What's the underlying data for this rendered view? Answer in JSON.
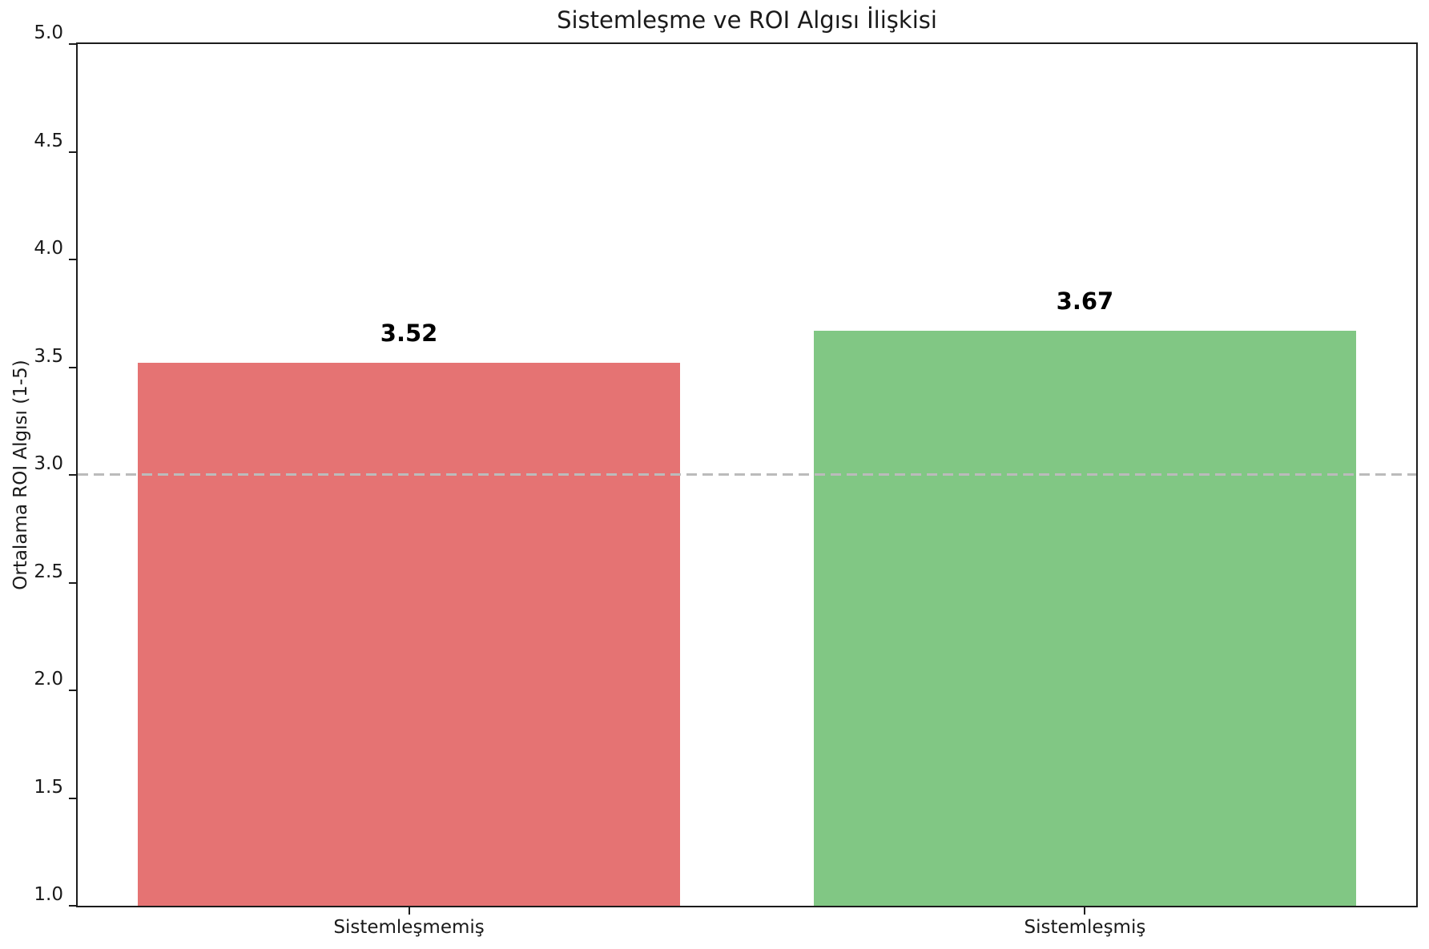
{
  "chart_data": {
    "type": "bar",
    "title": "Sistemleşme ve ROI Algısı İlişkisi",
    "ylabel": "Ortalama ROI Algısı (1-5)",
    "xlabel": "",
    "categories": [
      "Sistemleşmemiş",
      "Sistemleşmiş"
    ],
    "values": [
      3.52,
      3.67
    ],
    "value_labels": [
      "3.52",
      "3.67"
    ],
    "bar_colors": [
      "#E57373",
      "#81C784"
    ],
    "ylim": [
      1.0,
      5.0
    ],
    "yticks": [
      1.0,
      1.5,
      2.0,
      2.5,
      3.0,
      3.5,
      4.0,
      4.5,
      5.0
    ],
    "ytick_labels": [
      "1.0",
      "1.5",
      "2.0",
      "2.5",
      "3.0",
      "3.5",
      "4.0",
      "4.5",
      "5.0"
    ],
    "reference_line": {
      "y": 3.0,
      "color": "#bbbbbb",
      "style": "dashed"
    },
    "grid": false,
    "legend": null
  }
}
